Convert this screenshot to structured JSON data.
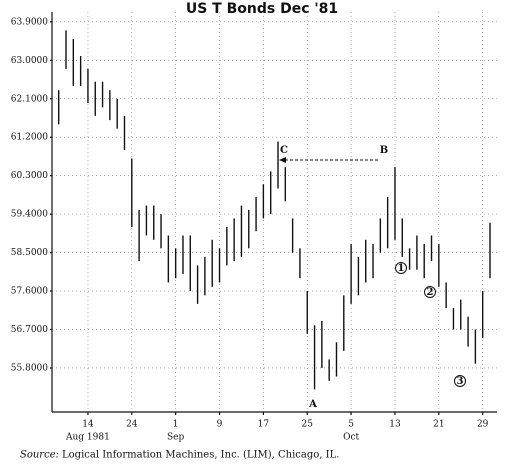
{
  "chart_data": {
    "type": "range-bar",
    "title": "US T Bonds Dec '81",
    "categories": [
      null,
      null,
      null,
      null,
      "14",
      null,
      null,
      null,
      null,
      null,
      "24",
      null,
      null,
      null,
      null,
      null,
      "1",
      null,
      null,
      null,
      null,
      null,
      "9",
      null,
      null,
      null,
      null,
      null,
      "17",
      null,
      null,
      null,
      null,
      null,
      "25",
      null,
      null,
      null,
      null,
      null,
      "5",
      null,
      null,
      null,
      null,
      null,
      "13",
      null,
      null,
      null,
      null,
      null,
      "21",
      null,
      null,
      null,
      null,
      null,
      "29",
      null
    ],
    "month_labels": [
      null,
      null,
      null,
      null,
      "Aug 1981",
      null,
      null,
      null,
      null,
      null,
      null,
      null,
      null,
      null,
      null,
      null,
      "Sep",
      null,
      null,
      null,
      null,
      null,
      null,
      null,
      null,
      null,
      null,
      null,
      null,
      null,
      null,
      null,
      null,
      null,
      null,
      null,
      null,
      null,
      null,
      null,
      "Oct",
      null,
      null,
      null,
      null,
      null,
      null,
      null,
      null,
      null,
      null,
      null,
      null,
      null,
      null,
      null,
      null,
      null,
      null,
      null
    ],
    "high": [
      62.3,
      63.7,
      63.5,
      63.1,
      62.8,
      62.5,
      62.5,
      62.3,
      62.1,
      61.7,
      60.7,
      59.5,
      59.6,
      59.6,
      59.4,
      58.9,
      58.6,
      58.9,
      58.9,
      58.2,
      58.4,
      58.8,
      58.6,
      59.1,
      59.3,
      59.6,
      59.5,
      59.8,
      60.1,
      60.4,
      61.1,
      60.5,
      59.3,
      58.6,
      57.6,
      56.8,
      56.9,
      56.0,
      56.4,
      57.5,
      58.7,
      58.4,
      58.8,
      58.7,
      59.3,
      59.8,
      60.5,
      59.3,
      58.6,
      58.9,
      58.7,
      58.9,
      58.7,
      57.8,
      57.2,
      57.4,
      57.0,
      56.7,
      57.6,
      59.2
    ],
    "low": [
      61.5,
      62.8,
      62.4,
      62.4,
      62.0,
      61.7,
      61.9,
      61.6,
      61.4,
      60.9,
      59.1,
      58.3,
      58.9,
      58.8,
      58.6,
      57.8,
      57.9,
      58.0,
      57.6,
      57.3,
      57.5,
      57.7,
      57.8,
      58.2,
      58.3,
      58.4,
      58.6,
      59.0,
      59.3,
      59.4,
      60.0,
      59.7,
      58.5,
      57.9,
      56.6,
      55.3,
      55.8,
      55.5,
      55.6,
      56.2,
      57.3,
      57.5,
      57.8,
      57.9,
      58.5,
      58.6,
      58.8,
      58.4,
      58.1,
      58.1,
      57.9,
      58.3,
      57.7,
      57.2,
      56.7,
      56.7,
      56.3,
      55.9,
      56.5,
      57.9
    ],
    "ylim": [
      54.77,
      64.13
    ],
    "yticks": [
      {
        "value": 55.8,
        "label": "55.8000"
      },
      {
        "value": 56.7,
        "label": "56.7000"
      },
      {
        "value": 57.6,
        "label": "57.6000"
      },
      {
        "value": 58.5,
        "label": "58.5000"
      },
      {
        "value": 59.4,
        "label": "59.4000"
      },
      {
        "value": 60.3,
        "label": "60.3000"
      },
      {
        "value": 61.2,
        "label": "61.2000"
      },
      {
        "value": 62.1,
        "label": "62.1000"
      },
      {
        "value": 63,
        "label": "63.0000"
      },
      {
        "value": 63.9,
        "label": "63.9000"
      }
    ],
    "grid": true,
    "color": "#111111",
    "annotations": [
      "A",
      "B",
      "C",
      "1",
      "2",
      "3"
    ]
  },
  "source_label": "Source:",
  "source_text": "Logical Information Machines, Inc. (LIM), Chicago, IL."
}
